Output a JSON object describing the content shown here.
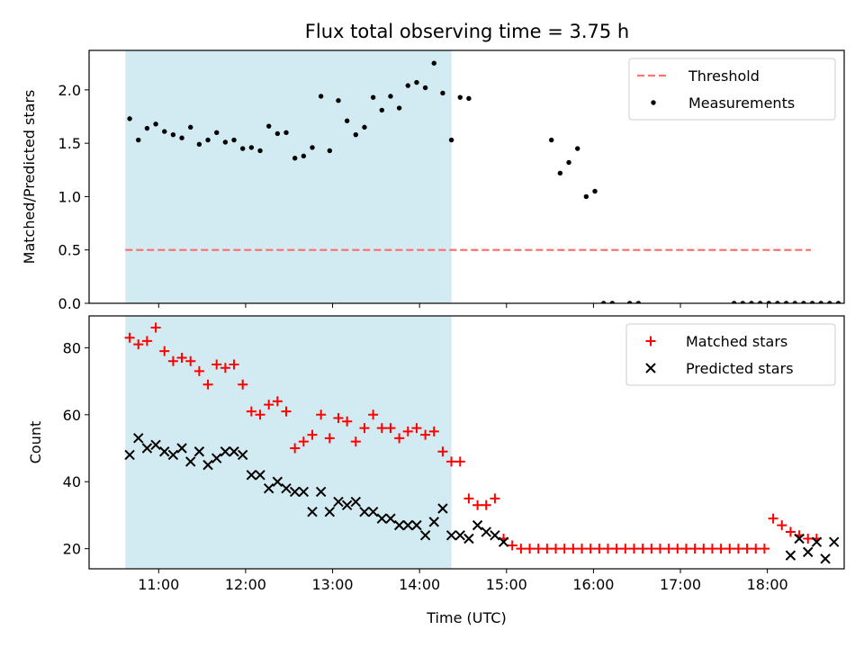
{
  "title": "Flux total observing time = 3.75 h",
  "chart_data": [
    {
      "type": "scatter",
      "ylabel": "Matched/Predicted stars",
      "xlabel": "",
      "x_is_time": true,
      "xlim": [
        "10:12",
        "18:53"
      ],
      "ylim": [
        0,
        2.37
      ],
      "x_ticks": [
        "11:00",
        "12:00",
        "13:00",
        "14:00",
        "15:00",
        "16:00",
        "17:00",
        "18:00"
      ],
      "y_ticks": [
        {
          "v": 0,
          "label": "0.0"
        },
        {
          "v": 0.5,
          "label": "0.5"
        },
        {
          "v": 1.0,
          "label": "1.0"
        },
        {
          "v": 1.5,
          "label": "1.5"
        },
        {
          "v": 2.0,
          "label": "2.0"
        }
      ],
      "shaded_span": [
        "10:37",
        "14:22"
      ],
      "shade_color": "#add8e6",
      "threshold": {
        "value": 0.5,
        "x_range": [
          "10:37",
          "18:30"
        ],
        "color": "#ff7373"
      },
      "legend": {
        "placement": "top-right",
        "entries": [
          "Threshold",
          "Measurements"
        ]
      },
      "series": [
        {
          "name": "Measurements",
          "marker": "dot",
          "color": "#000000",
          "x": [
            "10:40",
            "10:46",
            "10:52",
            "10:58",
            "11:04",
            "11:10",
            "11:16",
            "11:22",
            "11:28",
            "11:34",
            "11:40",
            "11:46",
            "11:52",
            "11:58",
            "12:04",
            "12:10",
            "12:16",
            "12:22",
            "12:28",
            "12:34",
            "12:40",
            "12:46",
            "12:52",
            "12:58",
            "13:04",
            "13:10",
            "13:16",
            "13:22",
            "13:28",
            "13:34",
            "13:40",
            "13:46",
            "13:52",
            "13:58",
            "14:04",
            "14:10",
            "14:16",
            "14:22",
            "14:28",
            "14:34",
            "15:31",
            "15:37",
            "15:43",
            "15:49",
            "15:55",
            "16:01",
            "16:07",
            "16:13",
            "16:25",
            "16:31",
            "17:37",
            "17:43",
            "17:49",
            "17:55",
            "18:01",
            "18:07",
            "18:13",
            "18:19",
            "18:25",
            "18:31",
            "18:37",
            "18:43",
            "18:49",
            "18:55"
          ],
          "y": [
            1.73,
            1.53,
            1.64,
            1.68,
            1.61,
            1.58,
            1.55,
            1.65,
            1.49,
            1.53,
            1.6,
            1.51,
            1.53,
            1.45,
            1.46,
            1.43,
            1.66,
            1.59,
            1.6,
            1.36,
            1.38,
            1.46,
            1.94,
            1.43,
            1.9,
            1.71,
            1.58,
            1.65,
            1.93,
            1.81,
            1.94,
            1.83,
            2.04,
            2.07,
            2.02,
            2.25,
            1.97,
            1.53,
            1.93,
            1.92,
            1.53,
            1.22,
            1.32,
            1.45,
            1.0,
            1.05,
            0,
            0,
            0,
            0,
            0,
            0,
            0,
            0,
            0,
            0,
            0,
            0,
            0,
            0,
            0,
            0,
            0,
            0
          ]
        }
      ]
    },
    {
      "type": "scatter",
      "ylabel": "Count",
      "xlabel": "Time (UTC)",
      "x_is_time": true,
      "xlim": [
        "10:12",
        "18:53"
      ],
      "ylim": [
        14,
        89.5
      ],
      "x_ticks": [
        "11:00",
        "12:00",
        "13:00",
        "14:00",
        "15:00",
        "16:00",
        "17:00",
        "18:00"
      ],
      "y_ticks": [
        {
          "v": 20,
          "label": "20"
        },
        {
          "v": 40,
          "label": "40"
        },
        {
          "v": 60,
          "label": "60"
        },
        {
          "v": 80,
          "label": "80"
        }
      ],
      "shaded_span": [
        "10:37",
        "14:22"
      ],
      "shade_color": "#add8e6",
      "legend": {
        "placement": "top-right",
        "entries": [
          "Matched stars",
          "Predicted stars"
        ]
      },
      "series": [
        {
          "name": "Matched stars",
          "marker": "plus",
          "color": "#ff0000",
          "x": [
            "10:40",
            "10:46",
            "10:52",
            "10:58",
            "11:04",
            "11:10",
            "11:16",
            "11:22",
            "11:28",
            "11:34",
            "11:40",
            "11:46",
            "11:52",
            "11:58",
            "12:04",
            "12:10",
            "12:16",
            "12:22",
            "12:28",
            "12:34",
            "12:40",
            "12:46",
            "12:52",
            "12:58",
            "13:04",
            "13:10",
            "13:16",
            "13:22",
            "13:28",
            "13:34",
            "13:40",
            "13:46",
            "13:52",
            "13:58",
            "14:04",
            "14:10",
            "14:16",
            "14:22",
            "14:28",
            "14:34",
            "14:40",
            "14:46",
            "14:52",
            "14:58",
            "15:04",
            "15:10",
            "15:16",
            "15:22",
            "15:28",
            "15:34",
            "15:40",
            "15:46",
            "15:52",
            "15:58",
            "16:04",
            "16:10",
            "16:16",
            "16:22",
            "16:28",
            "16:34",
            "16:40",
            "16:46",
            "16:52",
            "16:58",
            "17:04",
            "17:10",
            "17:16",
            "17:22",
            "17:28",
            "17:34",
            "17:40",
            "17:46",
            "17:52",
            "17:58",
            "18:04",
            "18:10",
            "18:16",
            "18:22",
            "18:28",
            "18:34"
          ],
          "y": [
            83,
            81,
            82,
            86,
            79,
            76,
            77,
            76,
            73,
            69,
            75,
            74,
            75,
            69,
            61,
            60,
            63,
            64,
            61,
            50,
            52,
            54,
            60,
            53,
            59,
            58,
            52,
            56,
            60,
            56,
            56,
            53,
            55,
            56,
            54,
            55,
            49,
            46,
            46,
            35,
            33,
            33,
            35,
            23,
            21,
            20,
            20,
            20,
            20,
            20,
            20,
            20,
            20,
            20,
            20,
            20,
            20,
            20,
            20,
            20,
            20,
            20,
            20,
            20,
            20,
            20,
            20,
            20,
            20,
            20,
            20,
            20,
            20,
            20,
            29,
            27,
            25,
            24,
            23,
            23
          ]
        },
        {
          "name": "Predicted stars",
          "marker": "x",
          "color": "#000000",
          "x": [
            "10:40",
            "10:46",
            "10:52",
            "10:58",
            "11:04",
            "11:10",
            "11:16",
            "11:22",
            "11:28",
            "11:34",
            "11:40",
            "11:46",
            "11:52",
            "11:58",
            "12:04",
            "12:10",
            "12:16",
            "12:22",
            "12:28",
            "12:34",
            "12:40",
            "12:46",
            "12:52",
            "12:58",
            "13:04",
            "13:10",
            "13:16",
            "13:22",
            "13:28",
            "13:34",
            "13:40",
            "13:46",
            "13:52",
            "13:58",
            "14:04",
            "14:10",
            "14:16",
            "14:22",
            "14:28",
            "14:34",
            "14:40",
            "14:46",
            "14:52",
            "14:58",
            "18:16",
            "18:22",
            "18:28",
            "18:34",
            "18:40",
            "18:46"
          ],
          "y": [
            48,
            53,
            50,
            51,
            49,
            48,
            50,
            46,
            49,
            45,
            47,
            49,
            49,
            48,
            42,
            42,
            38,
            40,
            38,
            37,
            37,
            31,
            37,
            31,
            34,
            33,
            34,
            31,
            31,
            29,
            29,
            27,
            27,
            27,
            24,
            28,
            32,
            24,
            24,
            23,
            27,
            25,
            24,
            22,
            18,
            23,
            19,
            22,
            17,
            22
          ]
        }
      ]
    }
  ]
}
